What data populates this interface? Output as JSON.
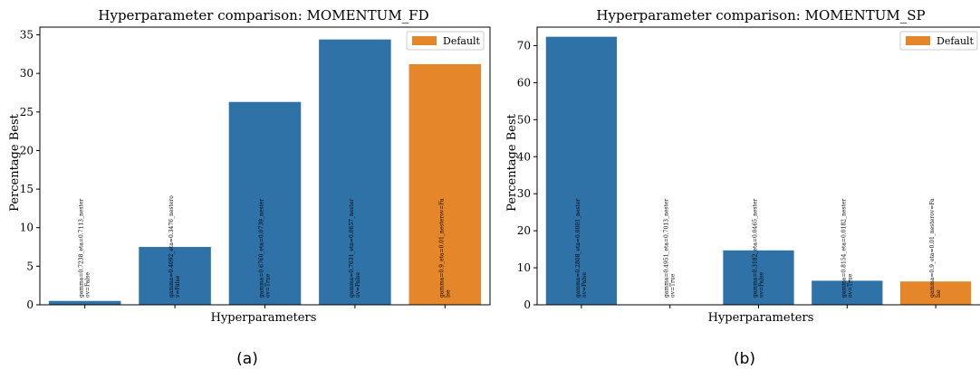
{
  "colors": {
    "series": "#2e72a8",
    "default": "#e6862a"
  },
  "charts": [
    {
      "id": "a",
      "panel_label": "(a)",
      "chart_data": {
        "type": "bar",
        "title": "Hyperparameter comparison: MOMENTUM_FD",
        "xlabel": "Hyperparameters",
        "ylabel": "Percentage Best",
        "ylim": [
          0,
          36
        ],
        "yticks": [
          0,
          5,
          10,
          15,
          20,
          25,
          30,
          35
        ],
        "grid": false,
        "legend": {
          "placement": "top-right",
          "entries": [
            "Default"
          ]
        },
        "categories": [
          "gamma=0.7238_eta=0.7113_nesterov=False",
          "gamma=0.4092_eta=0.3476_nesterov=False",
          "gamma=0.6760_eta=0.0739_nesterov=True",
          "gamma=0.7631_eta=0.0657_nesterov=False",
          "gamma=0.9_eta=0.01_nesterov=False"
        ],
        "bar_label_lines": [
          [
            "gamma=0.7238_eta=0.7113_nester",
            "ov=False"
          ],
          [
            "gamma=0.4092_eta=0.3476_nestero",
            "v=False"
          ],
          [
            "gamma=0.6760_eta=0.0739_nester",
            "ov=True"
          ],
          [
            "gamma=0.7631_eta=0.0657_nester",
            "ov=False"
          ],
          [
            "gamma=0.9_eta=0.01_nesterov=Fa",
            "lse"
          ]
        ],
        "values": [
          0.5,
          7.5,
          26.3,
          34.4,
          31.2
        ],
        "is_default": [
          false,
          false,
          false,
          false,
          true
        ]
      }
    },
    {
      "id": "b",
      "panel_label": "(b)",
      "chart_data": {
        "type": "bar",
        "title": "Hyperparameter comparison: MOMENTUM_SP",
        "xlabel": "Hyperparameters",
        "ylabel": "Percentage Best",
        "ylim": [
          0,
          75
        ],
        "yticks": [
          0,
          10,
          20,
          30,
          40,
          50,
          60,
          70
        ],
        "grid": false,
        "legend": {
          "placement": "top-right",
          "entries": [
            "Default"
          ]
        },
        "categories": [
          "gamma=0.2808_eta=0.0001_nesterov=False",
          "gamma=0.4951_eta=0.7013_nesterov=True",
          "gamma=0.3182_eta=0.0465_nesterov=False",
          "gamma=0.8154_eta=0.0182_nesterov=True",
          "gamma=0.9_eta=0.01_nesterov=False"
        ],
        "bar_label_lines": [
          [
            "gamma=0.2808_eta=0.0001_nester",
            "ov=False"
          ],
          [
            "gamma=0.4951_eta=0.7013_nester",
            "ov=True"
          ],
          [
            "gamma=0.3182_eta=0.0465_nester",
            "ov=False"
          ],
          [
            "gamma=0.8154_eta=0.0182_nester",
            "ov=True"
          ],
          [
            "gamma=0.9_eta=0.01_nesterov=Fa",
            "lse"
          ]
        ],
        "values": [
          72.4,
          0,
          14.7,
          6.5,
          6.3
        ],
        "is_default": [
          false,
          false,
          false,
          false,
          true
        ]
      }
    }
  ]
}
